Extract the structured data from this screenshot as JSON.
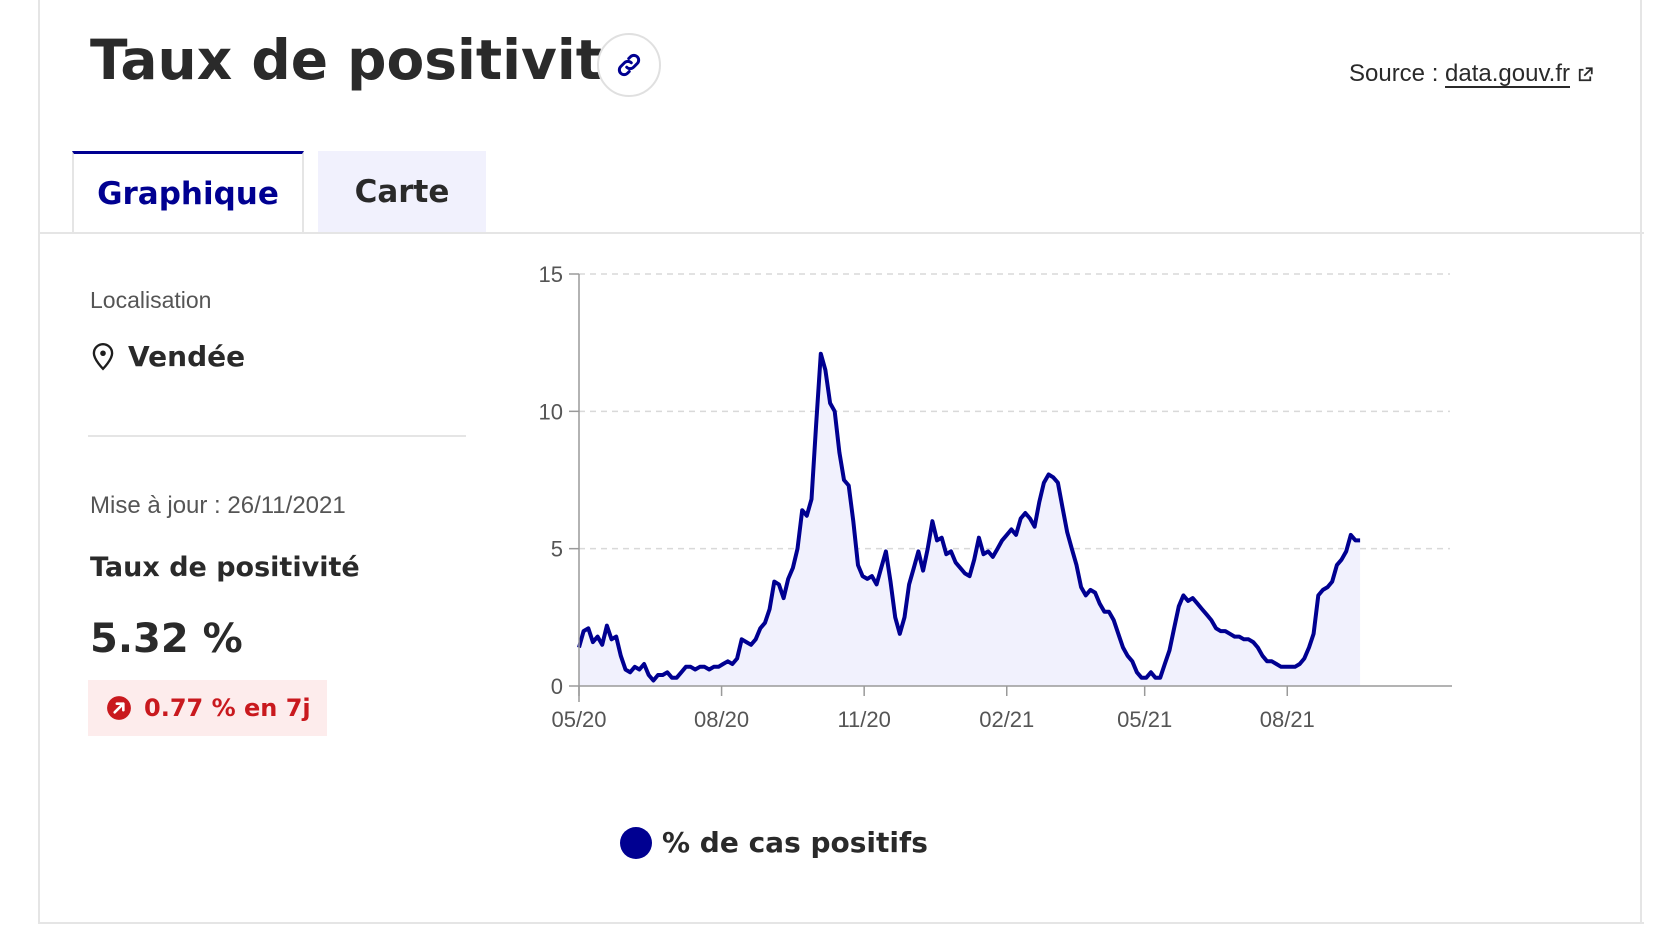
{
  "header": {
    "title": "Taux de positivité",
    "source_prefix": "Source : ",
    "source_link": "data.gouv.fr"
  },
  "tabs": [
    {
      "label": "Graphique",
      "active": true
    },
    {
      "label": "Carte",
      "active": false
    }
  ],
  "panel": {
    "location_label": "Localisation",
    "location_value": "Vendée",
    "updated": "Mise à jour : 26/11/2021",
    "indicator_label": "Taux de positivité",
    "indicator_value": "5.32 %",
    "trend": "0.77 % en 7j"
  },
  "colors": {
    "accent": "#000091",
    "trend_text": "#c9191e",
    "trend_bg": "#fdecec",
    "area_fill": "#f1f1fd"
  },
  "chart_data": {
    "type": "line",
    "title": "",
    "xlabel": "",
    "ylabel": "",
    "ylim": [
      0,
      15
    ],
    "yticks": [
      0,
      5,
      10,
      15
    ],
    "xticks": [
      {
        "date": "2020-05-13",
        "label": "05/20"
      },
      {
        "date": "2020-08-13",
        "label": "08/20"
      },
      {
        "date": "2020-11-13",
        "label": "11/20"
      },
      {
        "date": "2021-02-13",
        "label": "02/21"
      },
      {
        "date": "2021-05-13",
        "label": "05/21"
      },
      {
        "date": "2021-08-13",
        "label": "08/21"
      }
    ],
    "x_range": [
      "2020-05-13",
      "2021-11-26"
    ],
    "grid": "horizontal dashed",
    "legend_position": "bottom-left",
    "series": [
      {
        "name": "% de cas positifs",
        "color": "#000091",
        "points": [
          [
            "2020-05-13",
            1.4
          ],
          [
            "2020-05-16",
            2.0
          ],
          [
            "2020-05-19",
            2.1
          ],
          [
            "2020-05-22",
            1.6
          ],
          [
            "2020-05-25",
            1.8
          ],
          [
            "2020-05-28",
            1.5
          ],
          [
            "2020-05-31",
            2.2
          ],
          [
            "2020-06-03",
            1.7
          ],
          [
            "2020-06-06",
            1.8
          ],
          [
            "2020-06-09",
            1.1
          ],
          [
            "2020-06-12",
            0.6
          ],
          [
            "2020-06-15",
            0.5
          ],
          [
            "2020-06-18",
            0.7
          ],
          [
            "2020-06-21",
            0.6
          ],
          [
            "2020-06-24",
            0.8
          ],
          [
            "2020-06-27",
            0.4
          ],
          [
            "2020-06-30",
            0.2
          ],
          [
            "2020-07-03",
            0.4
          ],
          [
            "2020-07-06",
            0.4
          ],
          [
            "2020-07-09",
            0.5
          ],
          [
            "2020-07-12",
            0.3
          ],
          [
            "2020-07-15",
            0.3
          ],
          [
            "2020-07-18",
            0.5
          ],
          [
            "2020-07-21",
            0.7
          ],
          [
            "2020-07-24",
            0.7
          ],
          [
            "2020-07-27",
            0.6
          ],
          [
            "2020-07-30",
            0.7
          ],
          [
            "2020-08-02",
            0.7
          ],
          [
            "2020-08-05",
            0.6
          ],
          [
            "2020-08-08",
            0.7
          ],
          [
            "2020-08-11",
            0.7
          ],
          [
            "2020-08-14",
            0.8
          ],
          [
            "2020-08-17",
            0.9
          ],
          [
            "2020-08-20",
            0.8
          ],
          [
            "2020-08-23",
            1.0
          ],
          [
            "2020-08-26",
            1.7
          ],
          [
            "2020-08-29",
            1.6
          ],
          [
            "2020-09-01",
            1.5
          ],
          [
            "2020-09-04",
            1.7
          ],
          [
            "2020-09-07",
            2.1
          ],
          [
            "2020-09-10",
            2.3
          ],
          [
            "2020-09-13",
            2.8
          ],
          [
            "2020-09-16",
            3.8
          ],
          [
            "2020-09-19",
            3.7
          ],
          [
            "2020-09-22",
            3.2
          ],
          [
            "2020-09-25",
            3.9
          ],
          [
            "2020-09-28",
            4.3
          ],
          [
            "2020-10-01",
            5.0
          ],
          [
            "2020-10-04",
            6.4
          ],
          [
            "2020-10-07",
            6.2
          ],
          [
            "2020-10-10",
            6.8
          ],
          [
            "2020-10-13",
            9.5
          ],
          [
            "2020-10-16",
            12.1
          ],
          [
            "2020-10-19",
            11.5
          ],
          [
            "2020-10-22",
            10.3
          ],
          [
            "2020-10-25",
            10.0
          ],
          [
            "2020-10-28",
            8.5
          ],
          [
            "2020-10-31",
            7.5
          ],
          [
            "2020-11-03",
            7.3
          ],
          [
            "2020-11-06",
            6.0
          ],
          [
            "2020-11-09",
            4.4
          ],
          [
            "2020-11-12",
            4.0
          ],
          [
            "2020-11-15",
            3.9
          ],
          [
            "2020-11-18",
            4.0
          ],
          [
            "2020-11-21",
            3.7
          ],
          [
            "2020-11-24",
            4.3
          ],
          [
            "2020-11-27",
            4.9
          ],
          [
            "2020-11-30",
            3.8
          ],
          [
            "2020-12-03",
            2.5
          ],
          [
            "2020-12-06",
            1.9
          ],
          [
            "2020-12-09",
            2.5
          ],
          [
            "2020-12-12",
            3.7
          ],
          [
            "2020-12-15",
            4.3
          ],
          [
            "2020-12-18",
            4.9
          ],
          [
            "2020-12-21",
            4.2
          ],
          [
            "2020-12-24",
            5.0
          ],
          [
            "2020-12-27",
            6.0
          ],
          [
            "2020-12-30",
            5.3
          ],
          [
            "2021-01-02",
            5.4
          ],
          [
            "2021-01-05",
            4.8
          ],
          [
            "2021-01-08",
            4.9
          ],
          [
            "2021-01-11",
            4.5
          ],
          [
            "2021-01-14",
            4.3
          ],
          [
            "2021-01-17",
            4.1
          ],
          [
            "2021-01-20",
            4.0
          ],
          [
            "2021-01-23",
            4.6
          ],
          [
            "2021-01-26",
            5.4
          ],
          [
            "2021-01-29",
            4.8
          ],
          [
            "2021-02-01",
            4.9
          ],
          [
            "2021-02-04",
            4.7
          ],
          [
            "2021-02-07",
            5.0
          ],
          [
            "2021-02-10",
            5.3
          ],
          [
            "2021-02-13",
            5.5
          ],
          [
            "2021-02-16",
            5.7
          ],
          [
            "2021-02-19",
            5.5
          ],
          [
            "2021-02-22",
            6.1
          ],
          [
            "2021-02-25",
            6.3
          ],
          [
            "2021-02-28",
            6.1
          ],
          [
            "2021-03-03",
            5.8
          ],
          [
            "2021-03-06",
            6.7
          ],
          [
            "2021-03-09",
            7.4
          ],
          [
            "2021-03-12",
            7.7
          ],
          [
            "2021-03-15",
            7.6
          ],
          [
            "2021-03-18",
            7.4
          ],
          [
            "2021-03-21",
            6.5
          ],
          [
            "2021-03-24",
            5.6
          ],
          [
            "2021-03-27",
            5.0
          ],
          [
            "2021-03-30",
            4.4
          ],
          [
            "2021-04-02",
            3.6
          ],
          [
            "2021-04-05",
            3.3
          ],
          [
            "2021-04-08",
            3.5
          ],
          [
            "2021-04-11",
            3.4
          ],
          [
            "2021-04-14",
            3.0
          ],
          [
            "2021-04-17",
            2.7
          ],
          [
            "2021-04-20",
            2.7
          ],
          [
            "2021-04-23",
            2.4
          ],
          [
            "2021-04-26",
            1.9
          ],
          [
            "2021-04-29",
            1.4
          ],
          [
            "2021-05-02",
            1.1
          ],
          [
            "2021-05-05",
            0.9
          ],
          [
            "2021-05-08",
            0.5
          ],
          [
            "2021-05-11",
            0.3
          ],
          [
            "2021-05-14",
            0.3
          ],
          [
            "2021-05-17",
            0.5
          ],
          [
            "2021-05-20",
            0.3
          ],
          [
            "2021-05-23",
            0.3
          ],
          [
            "2021-05-26",
            0.8
          ],
          [
            "2021-05-29",
            1.3
          ],
          [
            "2021-06-01",
            2.1
          ],
          [
            "2021-06-04",
            2.9
          ],
          [
            "2021-06-07",
            3.3
          ],
          [
            "2021-06-10",
            3.1
          ],
          [
            "2021-06-13",
            3.2
          ],
          [
            "2021-06-16",
            3.0
          ],
          [
            "2021-06-19",
            2.8
          ],
          [
            "2021-06-22",
            2.6
          ],
          [
            "2021-06-25",
            2.4
          ],
          [
            "2021-06-28",
            2.1
          ],
          [
            "2021-07-01",
            2.0
          ],
          [
            "2021-07-04",
            2.0
          ],
          [
            "2021-07-07",
            1.9
          ],
          [
            "2021-07-10",
            1.8
          ],
          [
            "2021-07-13",
            1.8
          ],
          [
            "2021-07-16",
            1.7
          ],
          [
            "2021-07-19",
            1.7
          ],
          [
            "2021-07-22",
            1.6
          ],
          [
            "2021-07-25",
            1.4
          ],
          [
            "2021-07-28",
            1.1
          ],
          [
            "2021-07-31",
            0.9
          ],
          [
            "2021-08-03",
            0.9
          ],
          [
            "2021-08-06",
            0.8
          ],
          [
            "2021-08-09",
            0.7
          ],
          [
            "2021-08-12",
            0.7
          ],
          [
            "2021-08-15",
            0.7
          ],
          [
            "2021-08-18",
            0.7
          ],
          [
            "2021-08-21",
            0.8
          ],
          [
            "2021-08-24",
            1.0
          ],
          [
            "2021-08-27",
            1.4
          ],
          [
            "2021-08-30",
            1.9
          ],
          [
            "2021-09-02",
            3.3
          ],
          [
            "2021-09-05",
            3.5
          ],
          [
            "2021-09-08",
            3.6
          ],
          [
            "2021-09-11",
            3.8
          ],
          [
            "2021-09-14",
            4.4
          ],
          [
            "2021-09-17",
            4.6
          ],
          [
            "2021-09-20",
            4.9
          ],
          [
            "2021-09-23",
            5.5
          ],
          [
            "2021-09-26",
            5.3
          ],
          [
            "2021-09-29",
            5.3
          ]
        ]
      }
    ]
  }
}
